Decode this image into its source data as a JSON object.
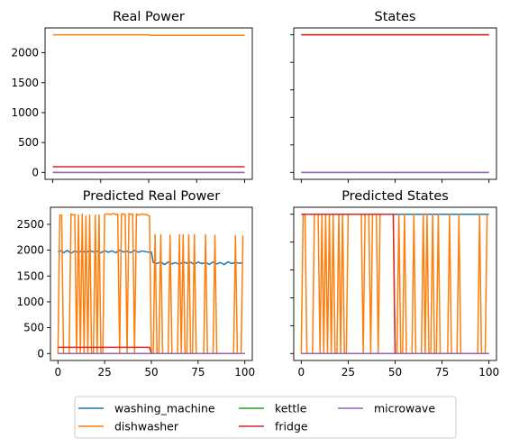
{
  "colors": {
    "washing_machine": "#1f77b4",
    "dishwasher": "#ff7f0e",
    "kettle": "#2ca02c",
    "fridge": "#d62728",
    "microwave": "#9467bd"
  },
  "legend": {
    "placement": "bottom-center",
    "entries": [
      "washing_machine",
      "dishwasher",
      "kettle",
      "fridge",
      "microwave"
    ]
  },
  "chart_data": [
    {
      "type": "line",
      "title": "Real Power",
      "xlim": [
        -4,
        104
      ],
      "ylim": [
        -115,
        2415
      ],
      "yticks": [
        0,
        500,
        1000,
        1500,
        2000
      ],
      "xticks": [
        0,
        25,
        50,
        75,
        100
      ],
      "show_x_tick_labels": false,
      "show_y_tick_labels": true,
      "series": [
        {
          "name": "dishwasher",
          "x": [
            0,
            50,
            51,
            100
          ],
          "y": [
            2300,
            2300,
            2290,
            2290
          ]
        },
        {
          "name": "fridge",
          "x": [
            0,
            100
          ],
          "y": [
            95,
            95
          ]
        },
        {
          "name": "kettle",
          "x": [
            0,
            100
          ],
          "y": [
            0,
            0
          ]
        },
        {
          "name": "microwave",
          "x": [
            0,
            100
          ],
          "y": [
            0,
            0
          ]
        }
      ]
    },
    {
      "type": "line",
      "title": "States",
      "xlim": [
        -4,
        104
      ],
      "ylim": [
        -0.05,
        1.05
      ],
      "yticks": [
        0,
        0.2,
        0.4,
        0.6,
        0.8,
        1.0
      ],
      "xticks": [
        0,
        25,
        50,
        75,
        100
      ],
      "show_x_tick_labels": false,
      "show_y_tick_labels": false,
      "series": [
        {
          "name": "washing_machine",
          "x": [
            0,
            100
          ],
          "y": [
            1,
            1
          ]
        },
        {
          "name": "dishwasher",
          "x": [
            0,
            100
          ],
          "y": [
            1,
            1
          ]
        },
        {
          "name": "fridge",
          "x": [
            0,
            100
          ],
          "y": [
            1,
            1
          ]
        },
        {
          "name": "kettle",
          "x": [
            0,
            100
          ],
          "y": [
            0,
            0
          ]
        },
        {
          "name": "microwave",
          "x": [
            0,
            100
          ],
          "y": [
            0,
            0
          ]
        }
      ]
    },
    {
      "type": "line",
      "title": "Predicted Real Power",
      "xlim": [
        -4,
        104
      ],
      "ylim": [
        -135,
        2830
      ],
      "yticks": [
        0,
        500,
        1000,
        1500,
        2000,
        2500
      ],
      "xticks": [
        0,
        25,
        50,
        75,
        100
      ],
      "show_x_tick_labels": true,
      "show_y_tick_labels": true,
      "series": [
        {
          "name": "washing_machine",
          "x": [
            0,
            2,
            3,
            5,
            7,
            9,
            11,
            13,
            15,
            17,
            19,
            21,
            23,
            25,
            27,
            29,
            31,
            33,
            35,
            37,
            39,
            41,
            43,
            45,
            47,
            49,
            50,
            51,
            53,
            55,
            57,
            59,
            61,
            63,
            65,
            67,
            69,
            71,
            73,
            75,
            77,
            79,
            81,
            83,
            85,
            87,
            89,
            91,
            93,
            95,
            97,
            99
          ],
          "y": [
            1970,
            1990,
            1950,
            1995,
            1940,
            1985,
            1955,
            1990,
            1950,
            1995,
            1965,
            1980,
            1950,
            1990,
            1960,
            1985,
            1950,
            2000,
            1965,
            1980,
            1955,
            1995,
            1960,
            1985,
            1970,
            1960,
            1965,
            1760,
            1740,
            1775,
            1720,
            1770,
            1735,
            1760,
            1720,
            1775,
            1745,
            1765,
            1725,
            1770,
            1740,
            1760,
            1725,
            1770,
            1735,
            1760,
            1720,
            1775,
            1740,
            1765,
            1745,
            1760
          ]
        },
        {
          "name": "dishwasher",
          "x": [
            0,
            1,
            2,
            3,
            4,
            5,
            6,
            7,
            8,
            9,
            10,
            11,
            12,
            13,
            14,
            15,
            16,
            17,
            18,
            19,
            20,
            21,
            22,
            23,
            24,
            25,
            26,
            27,
            28,
            29,
            30,
            31,
            32,
            33,
            34,
            35,
            36,
            37,
            38,
            39,
            40,
            41,
            42,
            43,
            44,
            45,
            46,
            47,
            48,
            49,
            50,
            51,
            52,
            53,
            54,
            55,
            56,
            57,
            58,
            59,
            60,
            61,
            62,
            63,
            64,
            65,
            66,
            67,
            68,
            69,
            70,
            71,
            72,
            73,
            74,
            75,
            76,
            77,
            78,
            79,
            80,
            81,
            82,
            83,
            84,
            85,
            86,
            87,
            88,
            89,
            90,
            91,
            92,
            93,
            94,
            95,
            96,
            97,
            98,
            99
          ],
          "y": [
            0,
            2680,
            2680,
            0,
            0,
            0,
            0,
            2700,
            2680,
            2690,
            0,
            2680,
            0,
            2700,
            0,
            2660,
            0,
            2680,
            0,
            0,
            2680,
            0,
            2680,
            0,
            0,
            2690,
            2700,
            2700,
            2690,
            2700,
            2710,
            2690,
            2700,
            0,
            2700,
            2700,
            2690,
            0,
            2710,
            2690,
            2700,
            0,
            2700,
            2680,
            2690,
            2700,
            2690,
            2690,
            2680,
            2660,
            0,
            0,
            2300,
            0,
            0,
            2300,
            0,
            0,
            0,
            0,
            2290,
            0,
            0,
            0,
            0,
            2300,
            0,
            2300,
            0,
            0,
            2300,
            0,
            0,
            2300,
            0,
            0,
            0,
            0,
            0,
            2300,
            0,
            0,
            0,
            0,
            2290,
            0,
            0,
            0,
            0,
            0,
            0,
            0,
            0,
            0,
            0,
            2280,
            0,
            0,
            0,
            2280
          ]
        },
        {
          "name": "fridge",
          "x": [
            0,
            49,
            50,
            100
          ],
          "y": [
            120,
            120,
            0,
            0
          ]
        },
        {
          "name": "kettle",
          "x": [
            0,
            100
          ],
          "y": [
            0,
            0
          ]
        },
        {
          "name": "microwave",
          "x": [
            0,
            100
          ],
          "y": [
            0,
            0
          ]
        }
      ]
    },
    {
      "type": "line",
      "title": "Predicted States",
      "xlim": [
        -4,
        104
      ],
      "ylim": [
        -0.05,
        1.05
      ],
      "yticks": [
        0,
        0.2,
        0.4,
        0.6,
        0.8,
        1.0
      ],
      "xticks": [
        0,
        25,
        50,
        75,
        100
      ],
      "show_x_tick_labels": true,
      "show_y_tick_labels": false,
      "series": [
        {
          "name": "washing_machine",
          "x": [
            0,
            100
          ],
          "y": [
            1,
            1
          ]
        },
        {
          "name": "dishwasher",
          "x": [
            0,
            1,
            2,
            3,
            4,
            5,
            6,
            7,
            8,
            9,
            10,
            11,
            12,
            13,
            14,
            15,
            16,
            17,
            18,
            19,
            20,
            21,
            22,
            23,
            24,
            25,
            26,
            27,
            28,
            29,
            30,
            31,
            32,
            33,
            34,
            35,
            36,
            37,
            38,
            39,
            40,
            41,
            42,
            43,
            44,
            45,
            46,
            47,
            48,
            49,
            50,
            51,
            52,
            53,
            54,
            55,
            56,
            57,
            58,
            59,
            60,
            61,
            62,
            63,
            64,
            65,
            66,
            67,
            68,
            69,
            70,
            71,
            72,
            73,
            74,
            75,
            76,
            77,
            78,
            79,
            80,
            81,
            82,
            83,
            84,
            85,
            86,
            87,
            88,
            89,
            90,
            91,
            92,
            93,
            94,
            95,
            96,
            97,
            98,
            99
          ],
          "y": [
            0,
            1,
            1,
            0,
            0,
            0,
            0,
            1,
            1,
            1,
            0,
            1,
            0,
            1,
            0,
            1,
            0,
            1,
            0,
            0,
            1,
            0,
            1,
            0,
            0,
            1,
            1,
            1,
            1,
            1,
            1,
            1,
            1,
            0,
            1,
            1,
            1,
            0,
            1,
            1,
            1,
            0,
            1,
            1,
            1,
            1,
            1,
            1,
            1,
            1,
            0,
            0,
            1,
            0,
            0,
            1,
            0,
            0,
            0,
            0,
            1,
            0,
            0,
            0,
            0,
            1,
            0,
            1,
            0,
            0,
            1,
            0,
            0,
            1,
            0,
            0,
            0,
            0,
            0,
            1,
            0,
            0,
            0,
            0,
            1,
            0,
            0,
            0,
            0,
            0,
            0,
            0,
            0,
            0,
            0,
            1,
            0,
            0,
            0,
            1
          ]
        },
        {
          "name": "fridge",
          "x": [
            0,
            49,
            50,
            100
          ],
          "y": [
            1,
            1,
            0,
            0
          ]
        },
        {
          "name": "kettle",
          "x": [
            0,
            100
          ],
          "y": [
            0,
            0
          ]
        },
        {
          "name": "microwave",
          "x": [
            0,
            100
          ],
          "y": [
            0,
            0
          ]
        }
      ]
    }
  ]
}
